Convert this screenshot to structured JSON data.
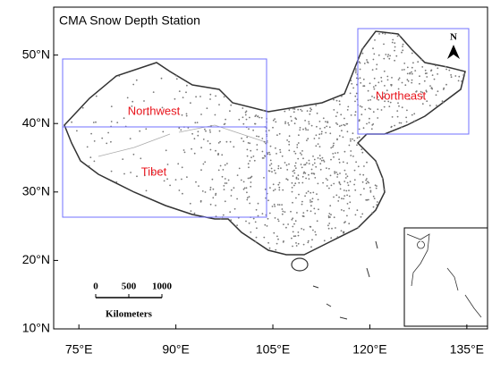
{
  "title": "CMA Snow Depth Station",
  "axes": {
    "xlim": [
      71.1,
      138.2
    ],
    "ylim": [
      10,
      57
    ],
    "xticks": [
      {
        "value": 75,
        "label": "75°E"
      },
      {
        "value": 90,
        "label": "90°E"
      },
      {
        "value": 105,
        "label": "105°E"
      },
      {
        "value": 120,
        "label": "120°E"
      },
      {
        "value": 135,
        "label": "135°E"
      }
    ],
    "yticks": [
      {
        "value": 10,
        "label": "10°N"
      },
      {
        "value": 20,
        "label": "20°N"
      },
      {
        "value": 30,
        "label": "30°N"
      },
      {
        "value": 40,
        "label": "40°N"
      },
      {
        "value": 50,
        "label": "50°N"
      }
    ]
  },
  "regions": [
    "Northwest",
    "Tibet",
    "Northeast"
  ],
  "scale_bar": {
    "labels": [
      "0",
      "500",
      "1000"
    ],
    "unit": "Kilometers"
  },
  "north": "N"
}
